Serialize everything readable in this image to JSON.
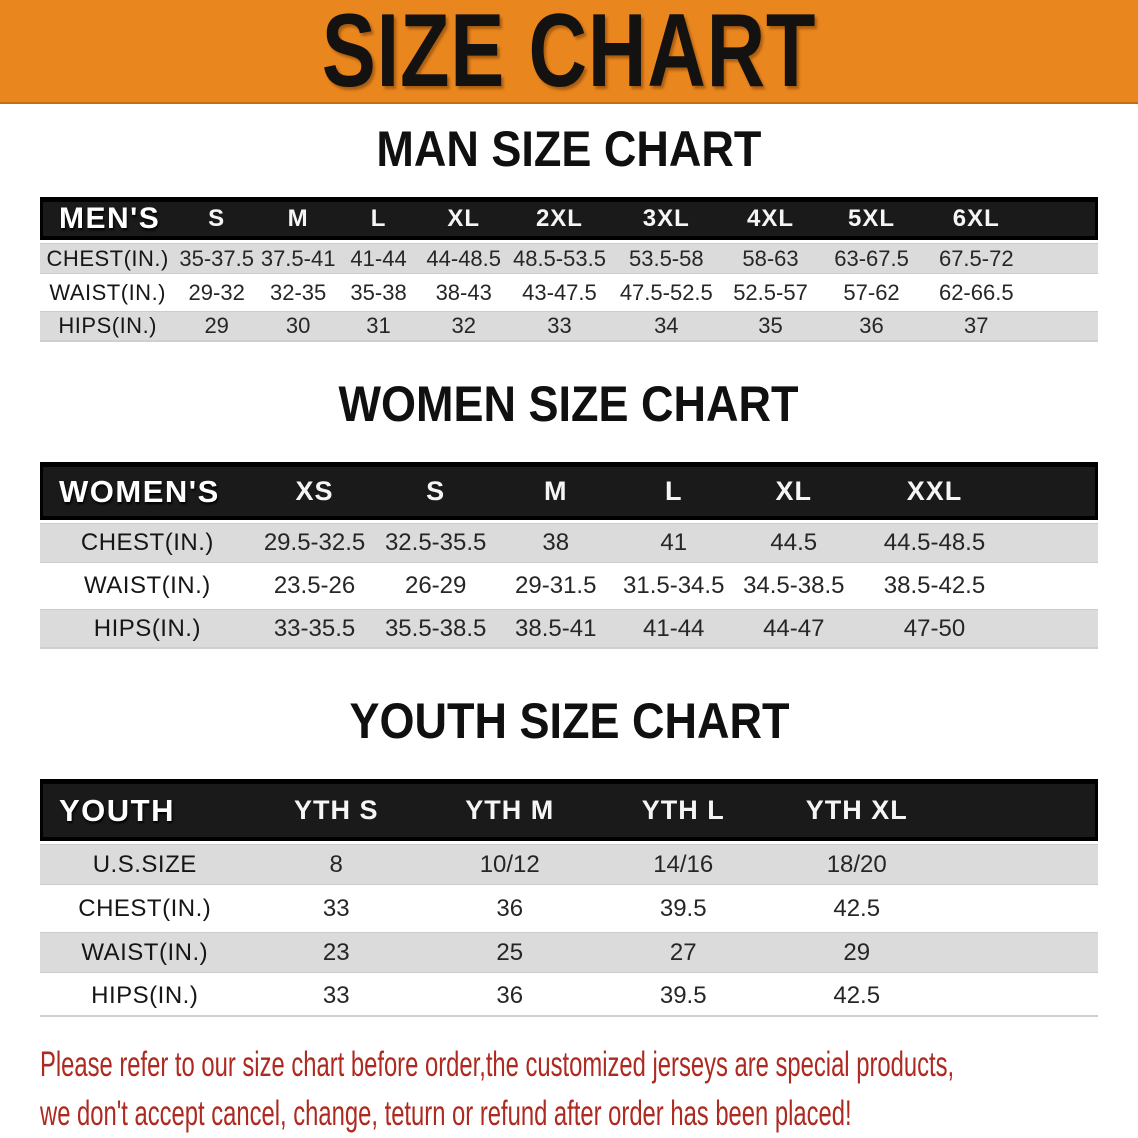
{
  "banner": {
    "title": "SIZE CHART"
  },
  "colors": {
    "banner_bg": "#ea861e",
    "table_header_bg": "#1a1a1a",
    "row_shade": "#dbdbdb",
    "footer_red": "#ae2a20"
  },
  "sections": [
    {
      "heading": "MAN SIZE CHART",
      "corner_label": "MEN'S",
      "columns": [
        "S",
        "M",
        "L",
        "XL",
        "2XL",
        "3XL",
        "4XL",
        "5XL",
        "6XL"
      ],
      "rows": [
        {
          "label": "CHEST(IN.)",
          "values": [
            "35-37.5",
            "37.5-41",
            "41-44",
            "44-48.5",
            "48.5-53.5",
            "53.5-58",
            "58-63",
            "63-67.5",
            "67.5-72"
          ]
        },
        {
          "label": "WAIST(IN.)",
          "values": [
            "29-32",
            "32-35",
            "35-38",
            "38-43",
            "43-47.5",
            "47.5-52.5",
            "52.5-57",
            "57-62",
            "62-66.5"
          ]
        },
        {
          "label": "HIPS(IN.)",
          "values": [
            "29",
            "30",
            "31",
            "32",
            "33",
            "34",
            "35",
            "36",
            "37"
          ]
        }
      ]
    },
    {
      "heading": "WOMEN SIZE CHART",
      "corner_label": "WOMEN'S",
      "columns": [
        "XS",
        "S",
        "M",
        "L",
        "XL",
        "XXL"
      ],
      "rows": [
        {
          "label": "CHEST(IN.)",
          "values": [
            "29.5-32.5",
            "32.5-35.5",
            "38",
            "41",
            "44.5",
            "44.5-48.5"
          ]
        },
        {
          "label": "WAIST(IN.)",
          "values": [
            "23.5-26",
            "26-29",
            "29-31.5",
            "31.5-34.5",
            "34.5-38.5",
            "38.5-42.5"
          ]
        },
        {
          "label": "HIPS(IN.)",
          "values": [
            "33-35.5",
            "35.5-38.5",
            "38.5-41",
            "41-44",
            "44-47",
            "47-50"
          ]
        }
      ]
    },
    {
      "heading": "YOUTH SIZE CHART",
      "corner_label": "YOUTH",
      "columns": [
        "YTH S",
        "YTH M",
        "YTH L",
        "YTH XL"
      ],
      "rows": [
        {
          "label": "U.S.SIZE",
          "values": [
            "8",
            "10/12",
            "14/16",
            "18/20"
          ]
        },
        {
          "label": "CHEST(IN.)",
          "values": [
            "33",
            "36",
            "39.5",
            "42.5"
          ]
        },
        {
          "label": "WAIST(IN.)",
          "values": [
            "23",
            "25",
            "27",
            "29"
          ]
        },
        {
          "label": "HIPS(IN.)",
          "values": [
            "33",
            "36",
            "39.5",
            "42.5"
          ]
        }
      ]
    }
  ],
  "footer": {
    "line1": "Please refer to our size chart before order,the customized jerseys are special products,",
    "line2": "we don't accept cancel, change, teturn or refund after order has been placed!"
  }
}
